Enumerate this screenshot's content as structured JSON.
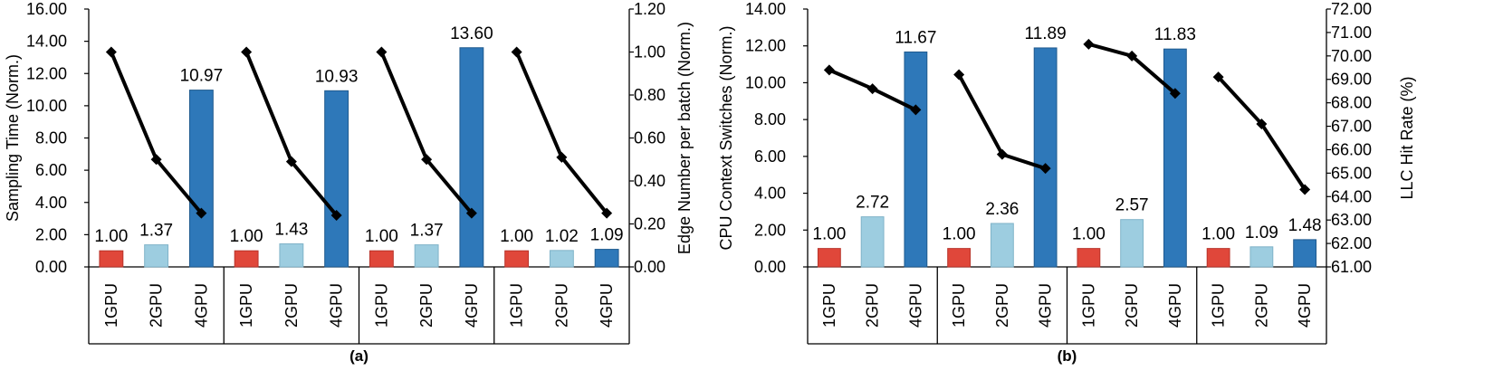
{
  "chart_data": [
    {
      "type": "bar",
      "caption": "(a)",
      "ylabel": "Sampling Time (Norm.)",
      "y2label": "Edge Number per batch (Norm.)",
      "ylim": [
        0,
        16
      ],
      "y2lim": [
        0,
        1.2
      ],
      "y_ticks": [
        "0.00",
        "2.00",
        "4.00",
        "6.00",
        "8.00",
        "10.00",
        "12.00",
        "14.00",
        "16.00"
      ],
      "y2_ticks": [
        "0.00",
        "0.20",
        "0.40",
        "0.60",
        "0.80",
        "1.00",
        "1.20"
      ],
      "categories": [
        "1GPU",
        "2GPU",
        "4GPU"
      ],
      "groups": [
        {
          "bars": [
            1.0,
            1.37,
            10.97
          ],
          "labels": [
            "1.00",
            "1.37",
            "10.97"
          ],
          "line": [
            1.0,
            0.5,
            0.25
          ]
        },
        {
          "bars": [
            1.0,
            1.43,
            10.93
          ],
          "labels": [
            "1.00",
            "1.43",
            "10.93"
          ],
          "line": [
            1.0,
            0.49,
            0.24
          ]
        },
        {
          "bars": [
            1.0,
            1.37,
            13.6
          ],
          "labels": [
            "1.00",
            "1.37",
            "13.60"
          ],
          "line": [
            1.0,
            0.5,
            0.25
          ]
        },
        {
          "bars": [
            1.0,
            1.02,
            1.09
          ],
          "labels": [
            "1.00",
            "1.02",
            "1.09"
          ],
          "line": [
            1.0,
            0.51,
            0.25
          ]
        }
      ]
    },
    {
      "type": "bar",
      "caption": "(b)",
      "ylabel": "CPU Context Switches (Norm.)",
      "y2label": "LLC Hit Rate (%)",
      "ylim": [
        0,
        14
      ],
      "y2lim": [
        61,
        72
      ],
      "y_ticks": [
        "0.00",
        "2.00",
        "4.00",
        "6.00",
        "8.00",
        "10.00",
        "12.00",
        "14.00"
      ],
      "y2_ticks": [
        "61.00",
        "62.00",
        "63.00",
        "64.00",
        "65.00",
        "66.00",
        "67.00",
        "68.00",
        "69.00",
        "70.00",
        "71.00",
        "72.00"
      ],
      "categories": [
        "1GPU",
        "2GPU",
        "4GPU"
      ],
      "groups": [
        {
          "bars": [
            1.0,
            2.72,
            11.67
          ],
          "labels": [
            "1.00",
            "2.72",
            "11.67"
          ],
          "line": [
            69.4,
            68.6,
            67.7
          ]
        },
        {
          "bars": [
            1.0,
            2.36,
            11.89
          ],
          "labels": [
            "1.00",
            "2.36",
            "11.89"
          ],
          "line": [
            69.2,
            65.8,
            65.2
          ]
        },
        {
          "bars": [
            1.0,
            2.57,
            11.83
          ],
          "labels": [
            "1.00",
            "2.57",
            "11.83"
          ],
          "line": [
            70.5,
            70.0,
            68.4
          ]
        },
        {
          "bars": [
            1.0,
            1.09,
            1.48
          ],
          "labels": [
            "1.00",
            "1.09",
            "1.48"
          ],
          "line": [
            69.1,
            67.1,
            64.3
          ]
        }
      ]
    }
  ],
  "colors": {
    "bar_1gpu": "#E0473A",
    "bar_2gpu": "#9DCDE0",
    "bar_4gpu": "#2E78B9",
    "line": "#000000"
  }
}
